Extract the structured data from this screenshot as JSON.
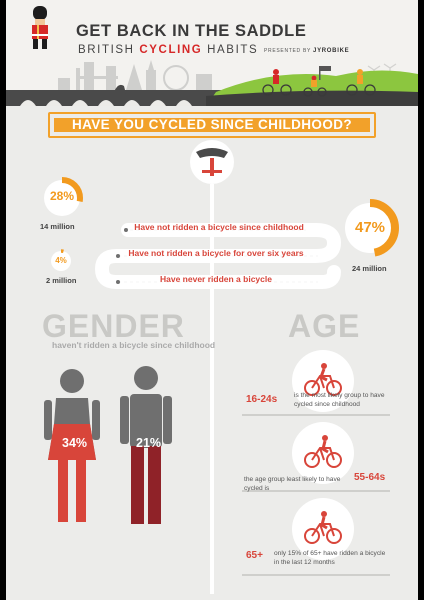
{
  "header": {
    "title": "GET BACK IN THE SADDLE",
    "subtitle_part1": "BRITISH",
    "subtitle_highlight": "CYCLING",
    "subtitle_part2": "HABITS",
    "presented_by": "PRESENTED BY",
    "brand": "JYROBIKE"
  },
  "question": "HAVE YOU CYCLED SINCE CHILDHOOD?",
  "stats": [
    {
      "percent": "28%",
      "value": 28,
      "millions": "14 million",
      "label": "Have not ridden a bicycle since childhood"
    },
    {
      "percent": "47%",
      "value": 47,
      "millions": "24 million",
      "label": "Have not ridden a bicycle for over six years"
    },
    {
      "percent": "4%",
      "value": 4,
      "millions": "2 million",
      "label": "Have never ridden a bicycle"
    }
  ],
  "gender": {
    "title": "GENDER",
    "subtitle": "haven't ridden a bicycle since childhood",
    "female_percent": "34%",
    "male_percent": "21%"
  },
  "age": {
    "title": "AGE",
    "items": [
      {
        "group": "16-24s",
        "text": "is the most likely group to have cycled since childhood"
      },
      {
        "group": "55-64s",
        "text": "the age group least likely to have cycled is"
      },
      {
        "group": "65+",
        "text": "only 15% of 65+ have ridden a bicycle in the last 12 months"
      }
    ]
  },
  "colors": {
    "orange": "#f2a12a",
    "red": "#d8453a",
    "dark_red": "#8f2228",
    "grey": "#6f6f6f"
  }
}
